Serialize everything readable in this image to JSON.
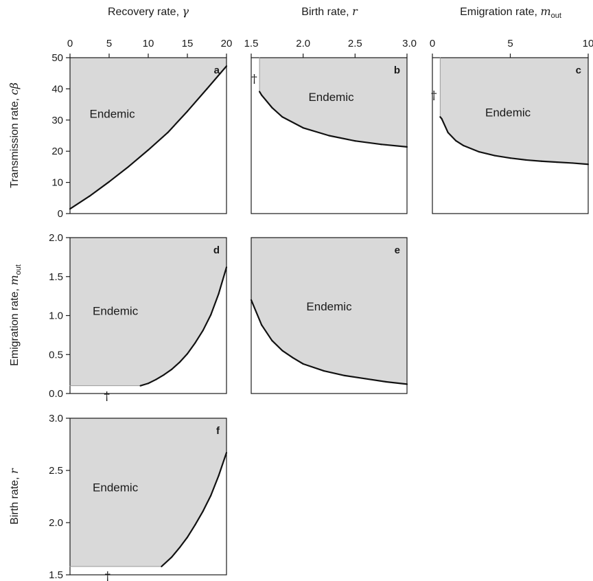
{
  "axes": {
    "top": [
      {
        "pre": "Recovery rate, ",
        "sym": "γ",
        "sub": ""
      },
      {
        "pre": "Birth rate, ",
        "sym": "r",
        "sub": ""
      },
      {
        "pre": "Emigration rate, ",
        "sym": "m",
        "sub": "out"
      }
    ],
    "left": [
      {
        "pre": "Transmission rate, ",
        "sym": "cβ",
        "sub": ""
      },
      {
        "pre": "Emigration rate, ",
        "sym": "m",
        "sub": "out"
      },
      {
        "pre": "Birth rate, ",
        "sym": "r",
        "sub": ""
      }
    ]
  },
  "chart_data": [
    {
      "panel": "a",
      "type": "area",
      "region_label": "Endemic",
      "xlabel": "Recovery rate, γ",
      "ylabel": "Transmission rate, cβ",
      "xlim": [
        0,
        20
      ],
      "ylim": [
        0,
        50
      ],
      "xticks": [
        "0",
        "5",
        "10",
        "15",
        "20"
      ],
      "yticks": [
        "0",
        "10",
        "20",
        "30",
        "40",
        "50"
      ],
      "boundary": {
        "x": [
          0,
          2.5,
          5,
          7.5,
          10,
          12.5,
          15,
          17.5,
          20
        ],
        "y": [
          1.5,
          5.6,
          10.2,
          15.1,
          20.4,
          26.0,
          32.8,
          40.0,
          47.3
        ]
      },
      "region_label_at": [
        5.4,
        32
      ],
      "dagger_at": null
    },
    {
      "panel": "b",
      "type": "area",
      "region_label": "Endemic",
      "xlabel": "Birth rate, r",
      "ylabel": "Transmission rate, cβ",
      "xlim": [
        1.5,
        3.0
      ],
      "ylim": [
        0,
        50
      ],
      "xticks": [
        "1.5",
        "2.0",
        "2.5",
        "3.0"
      ],
      "yticks": [],
      "boundary": {
        "x": [
          1.58,
          1.58,
          1.6,
          1.7,
          1.8,
          2.0,
          2.25,
          2.5,
          2.75,
          3.0
        ],
        "y": [
          50,
          39.1,
          38.0,
          34.0,
          31.0,
          27.5,
          25.0,
          23.3,
          22.2,
          21.4
        ]
      },
      "region_label_at": [
        2.27,
        37.5
      ],
      "dagger_at": [
        1.53,
        43.3
      ]
    },
    {
      "panel": "c",
      "type": "area",
      "region_label": "Endemic",
      "xlabel": "Emigration rate, m_out",
      "ylabel": "Transmission rate, cβ",
      "xlim": [
        0,
        10
      ],
      "ylim": [
        0,
        50
      ],
      "xticks": [
        "0",
        "5",
        "10"
      ],
      "yticks": [],
      "boundary": {
        "x": [
          0.5,
          0.5,
          0.6,
          1,
          1.5,
          2,
          3,
          4,
          5,
          6,
          7,
          8,
          9,
          10
        ],
        "y": [
          50,
          31.0,
          30.4,
          26.0,
          23.4,
          21.8,
          19.8,
          18.6,
          17.8,
          17.2,
          16.8,
          16.5,
          16.2,
          15.8
        ]
      },
      "region_label_at": [
        4.85,
        32.5
      ],
      "dagger_at": [
        0.1,
        38
      ]
    },
    {
      "panel": "d",
      "type": "area",
      "region_label": "Endemic",
      "xlabel": "Recovery rate, γ",
      "ylabel": "Emigration rate, m_out",
      "xlim": [
        0,
        20
      ],
      "ylim": [
        0,
        2.0
      ],
      "xticks": [],
      "yticks": [
        "0.0",
        "0.5",
        "1.0",
        "1.5",
        "2.0"
      ],
      "boundary": {
        "x": [
          0,
          9,
          10,
          11,
          12,
          13,
          14,
          15,
          16,
          17,
          18,
          19,
          20
        ],
        "y": [
          0.1,
          0.1,
          0.13,
          0.18,
          0.24,
          0.31,
          0.4,
          0.51,
          0.65,
          0.81,
          1.01,
          1.28,
          1.62
        ]
      },
      "region_label_at": [
        5.8,
        1.06
      ],
      "dagger_at": [
        4.7,
        -0.03
      ]
    },
    {
      "panel": "e",
      "type": "area",
      "region_label": "Endemic",
      "xlabel": "Birth rate, r",
      "ylabel": "Emigration rate, m_out",
      "xlim": [
        1.5,
        3.0
      ],
      "ylim": [
        0,
        2.0
      ],
      "xticks": [],
      "yticks": [],
      "boundary": {
        "x": [
          1.5,
          1.6,
          1.7,
          1.8,
          1.9,
          2.0,
          2.2,
          2.4,
          2.6,
          2.8,
          3.0
        ],
        "y": [
          1.2,
          0.88,
          0.68,
          0.55,
          0.46,
          0.38,
          0.29,
          0.23,
          0.19,
          0.15,
          0.12
        ]
      },
      "region_label_at": [
        2.25,
        1.12
      ],
      "dagger_at": null
    },
    {
      "panel": "f",
      "type": "area",
      "region_label": "Endemic",
      "xlabel": "Recovery rate, γ",
      "ylabel": "Birth rate, r",
      "xlim": [
        0,
        20
      ],
      "ylim": [
        1.5,
        3.0
      ],
      "xticks": [],
      "yticks": [
        "1.5",
        "2.0",
        "2.5",
        "3.0"
      ],
      "boundary": {
        "x": [
          0,
          11.7,
          13,
          14,
          15,
          16,
          17,
          18,
          19,
          20
        ],
        "y": [
          1.58,
          1.58,
          1.67,
          1.76,
          1.86,
          1.98,
          2.11,
          2.26,
          2.45,
          2.67
        ]
      },
      "region_label_at": [
        5.8,
        2.34
      ],
      "dagger_at": [
        4.8,
        1.49
      ]
    }
  ]
}
